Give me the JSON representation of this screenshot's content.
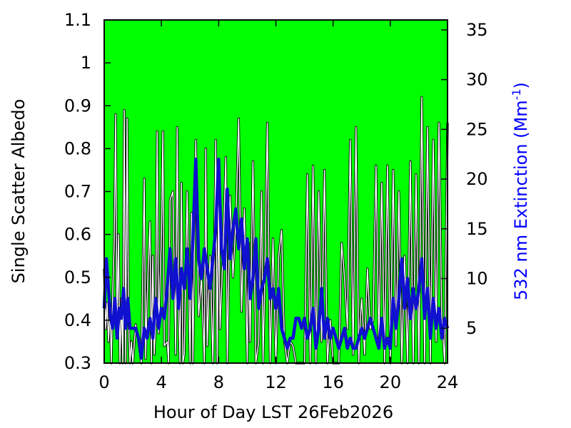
{
  "chart_data": {
    "type": "line",
    "xlabel": "Hour of Day LST 26Feb2026",
    "ylabel_left": "Single Scatter Albedo",
    "ylabel_right_prefix": "532 nm Extinction (Mm",
    "ylabel_right_sup": "-1",
    "ylabel_right_suffix": ")",
    "xlim": [
      0,
      24
    ],
    "ylim_left": [
      0.3,
      1.1
    ],
    "ylim_right": [
      1.5,
      36
    ],
    "x_ticks": [
      0,
      4,
      8,
      12,
      16,
      20,
      24
    ],
    "y_left_ticks": [
      0.3,
      0.4,
      0.5,
      0.6,
      0.7,
      0.8,
      0.9,
      1,
      1.1
    ],
    "y_right_ticks": [
      5,
      10,
      15,
      20,
      25,
      30,
      35
    ],
    "plot_background": "#00ff00",
    "series": [
      {
        "axis": "left",
        "color": "#ffffff",
        "x": [
          0,
          0.1,
          0.2,
          0.3,
          0.4,
          0.5,
          0.6,
          0.7,
          0.8,
          0.9,
          1.0,
          1.1,
          1.2,
          1.3,
          1.4,
          1.5,
          1.6,
          1.7,
          1.8,
          1.9,
          2.0,
          2.2,
          2.4,
          2.6,
          2.8,
          2.9,
          3.0,
          3.2,
          3.3,
          3.4,
          3.5,
          3.6,
          3.7,
          3.8,
          4.0,
          4.1,
          4.2,
          4.4,
          4.5,
          4.6,
          4.8,
          5.0,
          5.1,
          5.2,
          5.3,
          5.4,
          5.5,
          5.6,
          5.8,
          6.0,
          6.1,
          6.2,
          6.4,
          6.6,
          6.8,
          7.0,
          7.1,
          7.2,
          7.4,
          7.6,
          7.8,
          7.9,
          8.0,
          8.1,
          8.3,
          8.5,
          8.6,
          8.8,
          9.0,
          9.2,
          9.4,
          9.6,
          9.8,
          10.0,
          10.1,
          10.2,
          10.4,
          10.6,
          10.8,
          11.0,
          11.1,
          11.2,
          11.4,
          11.6,
          11.8,
          12.0,
          12.2,
          12.4,
          12.6,
          12.8,
          13.0,
          13.2,
          13.4,
          13.6,
          13.8,
          14.0,
          14.2,
          14.4,
          14.6,
          14.8,
          15.0,
          15.2,
          15.4,
          15.6,
          15.8,
          16.0,
          16.2,
          16.4,
          16.6,
          16.8,
          17.0,
          17.2,
          17.4,
          17.6,
          17.8,
          17.9,
          18.0,
          18.2,
          18.4,
          18.6,
          18.8,
          19.0,
          19.2,
          19.4,
          19.6,
          19.8,
          20.0,
          20.2,
          20.4,
          20.6,
          20.8,
          21.0,
          21.2,
          21.4,
          21.6,
          21.8,
          22.0,
          22.2,
          22.4,
          22.6,
          22.8,
          23.0,
          23.2,
          23.4,
          23.6,
          23.8,
          24.0
        ],
        "values": [
          0.52,
          0.38,
          0.44,
          0.35,
          0.43,
          0.3,
          0.47,
          0.58,
          0.88,
          0.38,
          0.6,
          0.3,
          0.45,
          0.3,
          0.89,
          0.3,
          0.87,
          0.4,
          0.3,
          0.35,
          0.3,
          0.39,
          0.35,
          0.3,
          0.73,
          0.31,
          0.45,
          0.63,
          0.3,
          0.55,
          0.32,
          0.4,
          0.84,
          0.37,
          0.6,
          0.84,
          0.34,
          0.35,
          0.3,
          0.68,
          0.7,
          0.32,
          0.85,
          0.45,
          0.3,
          0.72,
          0.3,
          0.32,
          0.7,
          0.3,
          0.65,
          0.3,
          0.82,
          0.41,
          0.5,
          0.3,
          0.8,
          0.34,
          0.55,
          0.3,
          0.82,
          0.3,
          0.68,
          0.38,
          0.55,
          0.78,
          0.3,
          0.69,
          0.5,
          0.63,
          0.87,
          0.42,
          0.66,
          0.3,
          0.58,
          0.35,
          0.77,
          0.3,
          0.35,
          0.7,
          0.3,
          0.45,
          0.86,
          0.3,
          0.59,
          0.3,
          0.55,
          0.61,
          0.35,
          0.3,
          0.35,
          0.34,
          0.3,
          0.3,
          0.3,
          0.3,
          0.74,
          0.3,
          0.76,
          0.3,
          0.7,
          0.35,
          0.75,
          0.3,
          0.4,
          0.3,
          0.3,
          0.3,
          0.58,
          0.5,
          0.38,
          0.82,
          0.32,
          0.85,
          0.3,
          0.4,
          0.45,
          0.32,
          0.52,
          0.38,
          0.4,
          0.76,
          0.35,
          0.72,
          0.3,
          0.76,
          0.3,
          0.75,
          0.34,
          0.7,
          0.3,
          0.55,
          0.3,
          0.77,
          0.3,
          0.74,
          0.3,
          0.92,
          0.3,
          0.85,
          0.3,
          0.82,
          0.35,
          0.86,
          0.4,
          0.3,
          0.86
        ]
      },
      {
        "axis": "right",
        "color": "#0000ff",
        "x": [
          0,
          0.15,
          0.3,
          0.45,
          0.6,
          0.75,
          0.9,
          1.05,
          1.2,
          1.35,
          1.5,
          1.65,
          1.8,
          2.0,
          2.2,
          2.4,
          2.6,
          2.8,
          3.0,
          3.2,
          3.4,
          3.6,
          3.8,
          4.0,
          4.2,
          4.4,
          4.6,
          4.8,
          5.0,
          5.2,
          5.4,
          5.6,
          5.8,
          6.0,
          6.2,
          6.4,
          6.6,
          6.8,
          7.0,
          7.2,
          7.4,
          7.6,
          7.8,
          8.0,
          8.2,
          8.4,
          8.6,
          8.8,
          9.0,
          9.2,
          9.4,
          9.6,
          9.8,
          10.0,
          10.2,
          10.4,
          10.6,
          10.8,
          11.0,
          11.2,
          11.4,
          11.6,
          11.8,
          12.0,
          12.2,
          12.4,
          12.6,
          12.8,
          13.0,
          13.2,
          13.4,
          13.6,
          13.8,
          14.0,
          14.2,
          14.4,
          14.6,
          14.8,
          15.0,
          15.2,
          15.4,
          15.6,
          15.8,
          16.0,
          16.2,
          16.4,
          16.6,
          16.8,
          17.0,
          17.2,
          17.4,
          17.6,
          17.8,
          18.0,
          18.2,
          18.4,
          18.6,
          18.8,
          19.0,
          19.2,
          19.4,
          19.6,
          19.8,
          20.0,
          20.2,
          20.4,
          20.6,
          20.8,
          21.0,
          21.2,
          21.4,
          21.6,
          21.8,
          22.0,
          22.2,
          22.4,
          22.6,
          22.8,
          23.0,
          23.2,
          23.4,
          23.6,
          23.8,
          24.0
        ],
        "values": [
          7,
          12,
          9,
          6,
          5,
          8,
          4,
          7,
          6,
          9,
          5,
          8,
          5,
          5,
          5,
          4,
          2,
          5,
          4,
          6,
          4,
          8,
          5,
          7,
          6,
          9,
          13,
          8,
          12,
          7,
          11,
          9,
          13,
          8,
          14,
          22,
          12,
          10,
          13,
          11,
          9,
          12,
          15,
          22,
          13,
          11,
          19,
          12,
          15,
          17,
          13,
          16,
          11,
          14,
          8,
          10,
          14,
          7,
          9,
          10,
          12,
          8,
          9,
          7,
          9,
          5,
          4,
          3,
          4,
          4,
          6,
          6,
          5,
          6,
          4,
          5,
          7,
          3,
          5,
          9,
          4,
          6,
          4,
          5,
          4,
          3,
          4,
          5,
          3,
          4,
          3,
          3,
          4,
          5,
          4,
          5,
          6,
          5,
          4,
          3,
          6,
          3,
          4,
          3,
          8,
          5,
          8,
          12,
          7,
          10,
          6,
          9,
          7,
          9,
          12,
          6,
          9,
          4,
          8,
          5,
          7,
          4,
          6,
          5
        ]
      }
    ]
  }
}
